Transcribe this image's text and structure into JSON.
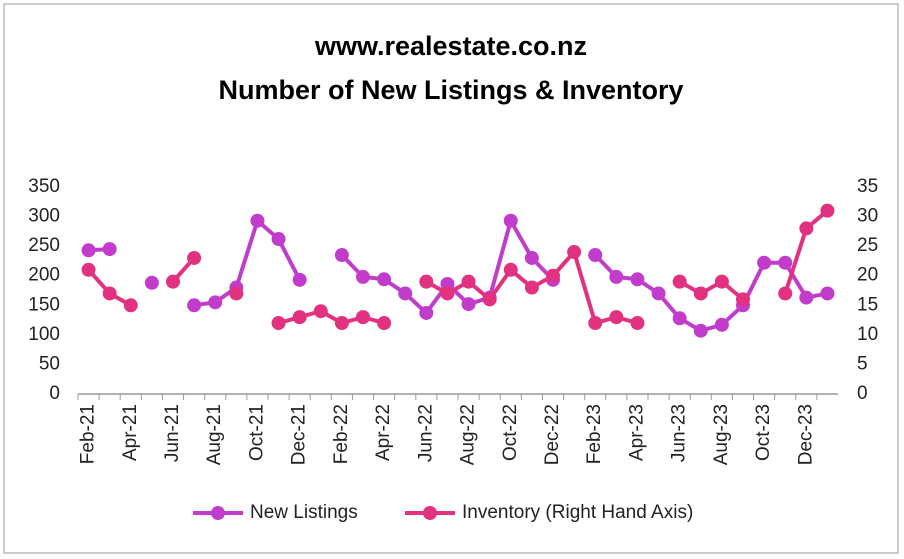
{
  "chart_data": {
    "type": "line",
    "title": "www.realestate.co.nz",
    "subtitle": "Number of New Listings & Inventory",
    "categories": [
      "Feb-21",
      null,
      "Apr-21",
      null,
      "Jun-21",
      null,
      "Aug-21",
      null,
      "Oct-21",
      null,
      "Dec-21",
      null,
      "Feb-22",
      null,
      "Apr-22",
      null,
      "Jun-22",
      null,
      "Aug-22",
      null,
      "Oct-22",
      null,
      "Dec-22",
      null,
      "Feb-23",
      null,
      "Apr-23",
      null,
      "Jun-23",
      null,
      "Aug-23",
      null,
      "Oct-23",
      null,
      "Dec-23",
      null
    ],
    "series": [
      {
        "name": "New Listings",
        "color": "#c13ccb",
        "axis": "y",
        "values": [
          243,
          245,
          null,
          188,
          null,
          150,
          155,
          180,
          293,
          262,
          193,
          null,
          235,
          198,
          194,
          170,
          137,
          186,
          152,
          163,
          293,
          230,
          193,
          null,
          235,
          198,
          194,
          170,
          128,
          107,
          117,
          150,
          222,
          222,
          163,
          170
        ]
      },
      {
        "name": "Inventory (Right Hand Axis)",
        "color": "#e2317f",
        "axis": "y2",
        "values": [
          21,
          17,
          15,
          null,
          19,
          23,
          null,
          17,
          null,
          12,
          13,
          14,
          12,
          13,
          12,
          null,
          19,
          17,
          19,
          16,
          21,
          18,
          20,
          24,
          12,
          13,
          12,
          null,
          19,
          17,
          19,
          16,
          null,
          17,
          28,
          31
        ]
      }
    ],
    "ylim": [
      0,
      350
    ],
    "yticks": [
      0,
      50,
      100,
      150,
      200,
      250,
      300,
      350
    ],
    "y2lim": [
      0,
      35
    ],
    "y2ticks": [
      0,
      5,
      10,
      15,
      20,
      25,
      30,
      35
    ],
    "legend": "bottom",
    "grid": false
  }
}
